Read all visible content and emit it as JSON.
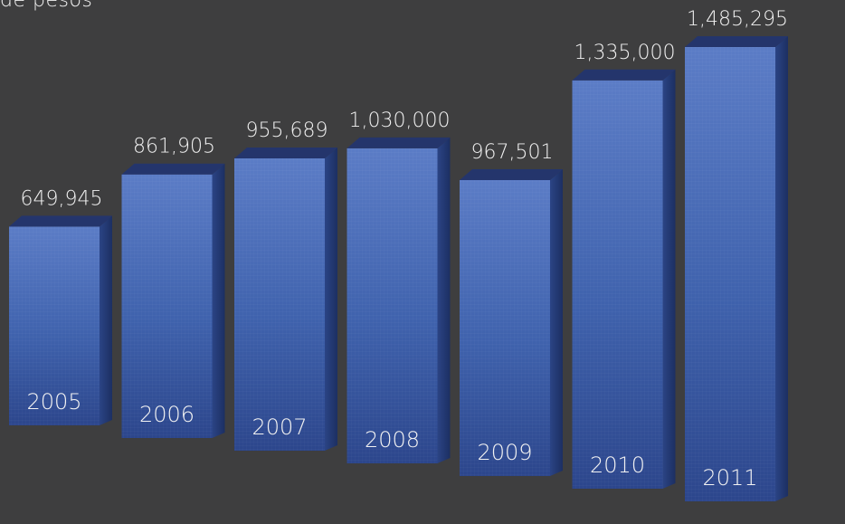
{
  "chart_data": {
    "type": "bar",
    "title": "de pesos",
    "categories": [
      "2005",
      "2006",
      "2007",
      "2008",
      "2009",
      "2010",
      "2011"
    ],
    "values": [
      649945,
      861905,
      955689,
      1030000,
      967501,
      1335000,
      1485295
    ],
    "value_labels": [
      "649,945",
      "861,905",
      "955,689",
      "1,030,000",
      "967,501",
      "1,335,000",
      "1,485,295"
    ],
    "ylim": [
      0,
      1485295
    ],
    "grid": false,
    "legend": "none"
  },
  "colors": {
    "background": "#3e3e3f",
    "bar_front": "#3d5fa8",
    "bar_top": "#24356c",
    "bar_side": "#233a74",
    "label": "#f2f2f2"
  }
}
